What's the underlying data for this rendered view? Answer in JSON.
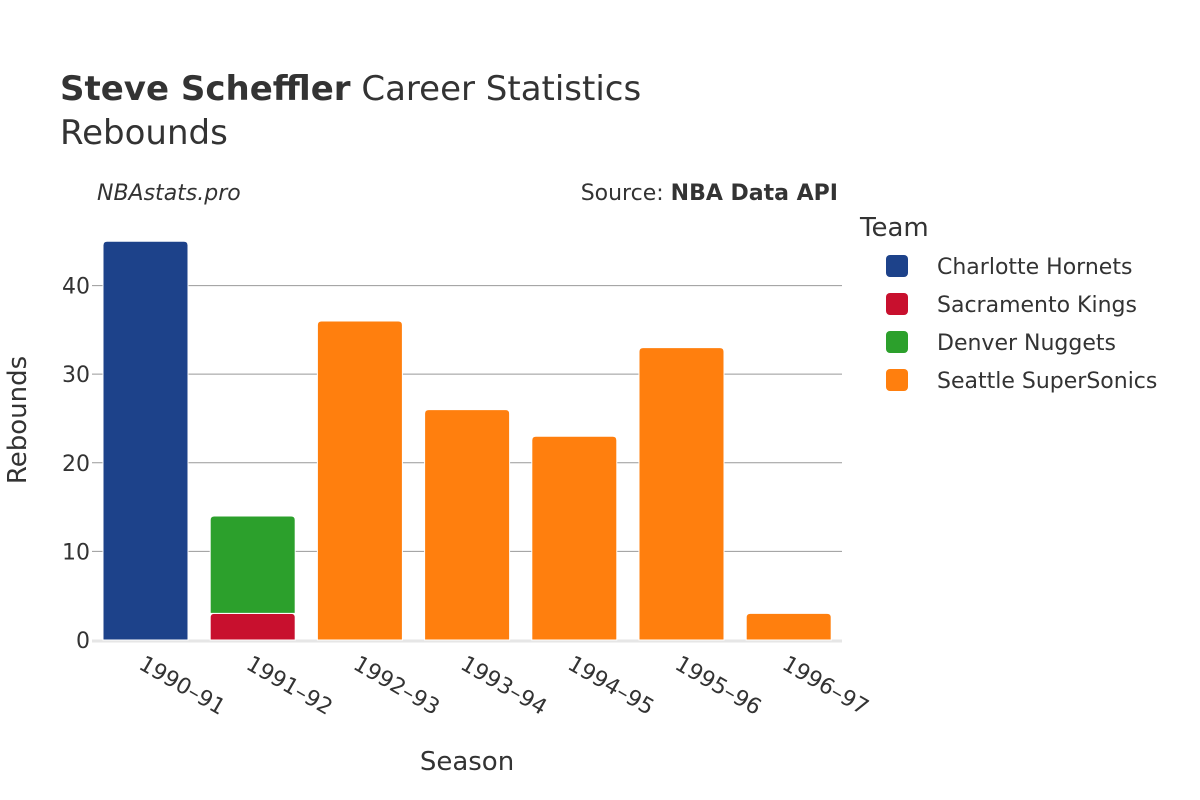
{
  "title": {
    "bold": "Steve Scheffler",
    "rest": " Career Statistics",
    "subtitle": "Rebounds"
  },
  "watermark": "NBAstats.pro",
  "source": {
    "prefix": "Source: ",
    "name": "NBA Data API"
  },
  "chart_data": {
    "type": "bar",
    "stacked": true,
    "categories": [
      "1990–91",
      "1991–92",
      "1992–93",
      "1993–94",
      "1994–95",
      "1995–96",
      "1996–97"
    ],
    "series": [
      {
        "name": "Charlotte Hornets",
        "color": "#1d428a",
        "values": [
          45,
          0,
          0,
          0,
          0,
          0,
          0
        ]
      },
      {
        "name": "Sacramento Kings",
        "color": "#c8102e",
        "values": [
          0,
          3,
          0,
          0,
          0,
          0,
          0
        ]
      },
      {
        "name": "Denver Nuggets",
        "color": "#2ca02c",
        "values": [
          0,
          11,
          0,
          0,
          0,
          0,
          0
        ]
      },
      {
        "name": "Seattle SuperSonics",
        "color": "#ff7f0e",
        "values": [
          0,
          0,
          36,
          26,
          23,
          33,
          3
        ]
      }
    ],
    "xlabel": "Season",
    "ylabel": "Rebounds",
    "ylim": [
      0,
      47.4
    ],
    "yticks": [
      "0",
      "10",
      "20",
      "30",
      "40"
    ],
    "grid": true,
    "legend": {
      "title": "Team",
      "placement": "right"
    }
  }
}
